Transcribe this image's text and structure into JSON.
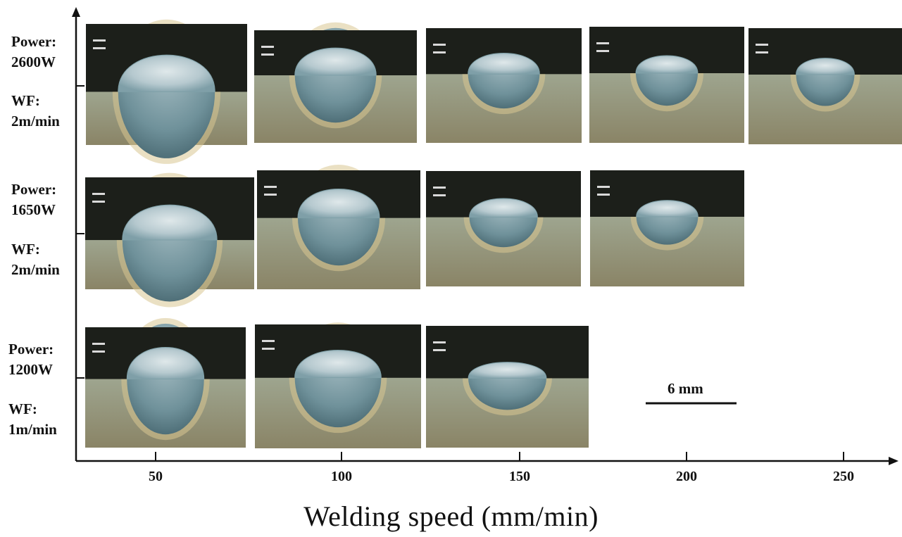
{
  "figure": {
    "xlabel": "Welding speed (mm/min)",
    "x_ticks": [
      "50",
      "100",
      "150",
      "200",
      "250"
    ],
    "scale_bar_label": "6 mm",
    "rows": [
      {
        "power_label": "Power:",
        "power_value": "2600W",
        "wf_label": "WF:",
        "wf_value": "2m/min",
        "sample_count": 5,
        "tone": "deep"
      },
      {
        "power_label": "Power:",
        "power_value": "1650W",
        "wf_label": "WF:",
        "wf_value": "2m/min",
        "sample_count": 4,
        "tone": "medium"
      },
      {
        "power_label": "Power:",
        "power_value": "1200W",
        "wf_label": "WF:",
        "wf_value": "1m/min",
        "sample_count": 3,
        "tone": "shallow"
      }
    ]
  },
  "colors": {
    "axis": "#111111",
    "resin": "#1c1f1a",
    "bead": "#b9cbd0",
    "bead_edge": "#7fa0a8",
    "base_metal": "#8f8a6e",
    "haz_ring": "#d8c691"
  }
}
